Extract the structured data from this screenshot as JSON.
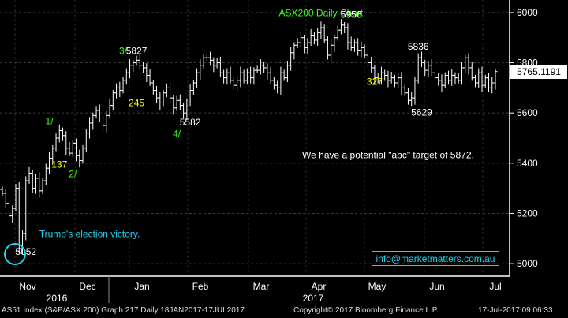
{
  "chart_data": {
    "type": "ohlc",
    "title": "ASX200 Daily Chart",
    "ylim": [
      4950,
      6050
    ],
    "y_ticks": [
      5000,
      5200,
      5400,
      5600,
      5800,
      6000
    ],
    "x_month_labels": [
      "Nov",
      "Dec",
      "Jan",
      "Feb",
      "Mar",
      "Apr",
      "May",
      "Jun",
      "Jul"
    ],
    "x_year_labels": [
      "2016",
      "2017"
    ],
    "last_price": "5765.1191",
    "closes": [
      5280,
      5240,
      5190,
      5220,
      5300,
      5060,
      5120,
      5330,
      5360,
      5300,
      5340,
      5290,
      5330,
      5380,
      5420,
      5460,
      5500,
      5530,
      5510,
      5460,
      5440,
      5480,
      5430,
      5410,
      5460,
      5520,
      5560,
      5590,
      5610,
      5580,
      5550,
      5590,
      5630,
      5680,
      5700,
      5690,
      5730,
      5760,
      5790,
      5800,
      5810,
      5790,
      5780,
      5750,
      5720,
      5690,
      5660,
      5640,
      5680,
      5700,
      5660,
      5620,
      5650,
      5630,
      5600,
      5640,
      5690,
      5720,
      5760,
      5790,
      5820,
      5820,
      5810,
      5790,
      5800,
      5760,
      5740,
      5760,
      5730,
      5710,
      5730,
      5760,
      5730,
      5760,
      5740,
      5770,
      5770,
      5790,
      5780,
      5760,
      5730,
      5710,
      5700,
      5760,
      5740,
      5790,
      5840,
      5870,
      5880,
      5900,
      5860,
      5880,
      5910,
      5890,
      5920,
      5940,
      5890,
      5830,
      5870,
      5900,
      5930,
      5950,
      5940,
      5880,
      5860,
      5880,
      5850,
      5860,
      5830,
      5800,
      5780,
      5740,
      5730,
      5760,
      5750,
      5730,
      5740,
      5720,
      5740,
      5700,
      5680,
      5650,
      5660,
      5730,
      5820,
      5800,
      5770,
      5790,
      5760,
      5740,
      5730,
      5710,
      5750,
      5730,
      5750,
      5740,
      5730,
      5780,
      5820,
      5780,
      5740,
      5720,
      5760,
      5710,
      5740,
      5700,
      5720,
      5765
    ],
    "annotations": [
      {
        "label": "ASX200 Daily Chart",
        "color": "#39ff14",
        "series_index": 95,
        "y": 5985
      },
      {
        "label": "5956",
        "color": "#ffffff",
        "series_index": 104,
        "y": 5980
      },
      {
        "label": "5827",
        "color": "#ffffff",
        "series_index": 40,
        "y": 5835
      },
      {
        "label": "3/",
        "color": "#39ff14",
        "series_index": 36,
        "y": 5835
      },
      {
        "label": "5836",
        "color": "#ffffff",
        "series_index": 124,
        "y": 5852
      },
      {
        "label": "245",
        "color": "#ffff00",
        "series_index": 40,
        "y": 5627
      },
      {
        "label": "327",
        "color": "#ffff00",
        "series_index": 111,
        "y": 5712
      },
      {
        "label": "5582",
        "color": "#ffffff",
        "series_index": 56,
        "y": 5550
      },
      {
        "label": "4/",
        "color": "#39ff14",
        "series_index": 52,
        "y": 5505
      },
      {
        "label": "5629",
        "color": "#ffffff",
        "series_index": 125,
        "y": 5590
      },
      {
        "label": "1/",
        "color": "#39ff14",
        "series_index": 14,
        "y": 5555
      },
      {
        "label": "137",
        "color": "#ffff00",
        "series_index": 17,
        "y": 5382
      },
      {
        "label": "2/",
        "color": "#39ff14",
        "series_index": 21,
        "y": 5345
      },
      {
        "label": "We have a potential \"abc\" target of 5872.",
        "color": "#ffffff",
        "series_index": 115,
        "y": 5420
      },
      {
        "label": "Trump's election victory.",
        "color": "#22d3ee",
        "series_index": 26,
        "y": 5105
      },
      {
        "label": "5052",
        "color": "#ffffff",
        "series_index": 7,
        "y": 5035
      }
    ]
  },
  "email": "info@marketmatters.com.au",
  "footer": {
    "left": "AS51 Index (S&P/ASX 200) Graph 217  Daily 18JAN2017-17JUL2017",
    "center": "Copyright© 2017 Bloomberg Finance L.P.",
    "right": "17-Jul-2017 09:06:33"
  },
  "colors": {
    "background": "#000000",
    "bars": "#ffffff",
    "axis": "#ffffff",
    "grid": "#444444",
    "title": "#39ff14",
    "wave_label": "#39ff14",
    "count_label": "#ffff00",
    "cyan": "#22d3ee"
  }
}
